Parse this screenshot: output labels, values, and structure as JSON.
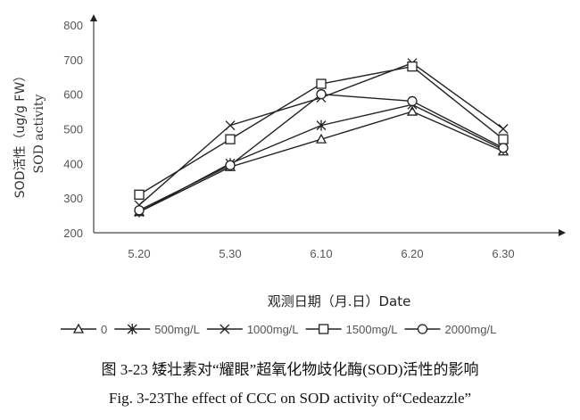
{
  "chart_data": {
    "type": "line",
    "xlabel": "观测日期（月.日）Date",
    "ylabel": "SOD活性（ug/g FW）",
    "ylabel2": "SOD activity",
    "categories": [
      "5.20",
      "5.30",
      "6.10",
      "6.20",
      "6.30"
    ],
    "yticks": [
      200,
      300,
      400,
      500,
      600,
      700,
      800
    ],
    "ylim": [
      200,
      800
    ],
    "grid": false,
    "legend_position": "bottom",
    "series": [
      {
        "name": "0",
        "marker": "triangle",
        "values": [
          260,
          390,
          470,
          550,
          435
        ]
      },
      {
        "name": "500mg/L",
        "marker": "asterisk",
        "values": [
          260,
          400,
          510,
          570,
          440
        ]
      },
      {
        "name": "1000mg/L",
        "marker": "x",
        "values": [
          280,
          510,
          590,
          690,
          500
        ]
      },
      {
        "name": "1500mg/L",
        "marker": "square",
        "values": [
          310,
          470,
          630,
          680,
          470
        ]
      },
      {
        "name": "2000mg/L",
        "marker": "circle",
        "values": [
          265,
          395,
          600,
          580,
          445
        ]
      }
    ],
    "line_color": "#222222"
  },
  "caption": {
    "zh": "图 3-23  矮壮素对“耀眼”超氧化物歧化酶(SOD)活性的影响",
    "en": "Fig. 3-23The effect of CCC on SOD activity of“Cedeazzle”"
  }
}
